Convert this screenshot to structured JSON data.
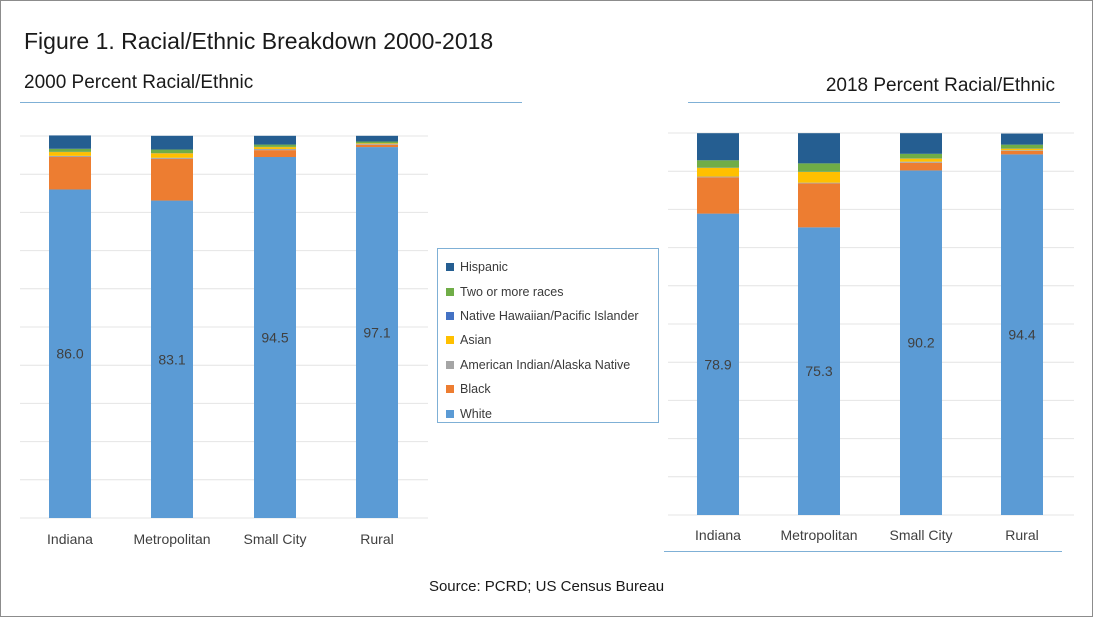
{
  "figure_title": "Figure 1. Racial/Ethnic Breakdown 2000-2018",
  "source": "Source: PCRD; US Census Bureau",
  "colors": {
    "White": "#5b9bd5",
    "Black": "#ed7d31",
    "American Indian/Alaska Native": "#a5a5a5",
    "Asian": "#ffc000",
    "Native Hawaiian/Pacific Islander": "#4472c4",
    "Two or more races": "#70ad47",
    "Hispanic": "#255e91"
  },
  "legend": {
    "items": [
      {
        "label": "Hispanic",
        "color": "#255e91"
      },
      {
        "label": "Two or more races",
        "color": "#70ad47"
      },
      {
        "label": "Native Hawaiian/Pacific Islander",
        "color": "#4472c4"
      },
      {
        "label": "Asian",
        "color": "#ffc000"
      },
      {
        "label": "American Indian/Alaska Native",
        "color": "#a5a5a5"
      },
      {
        "label": "Black",
        "color": "#ed7d31"
      },
      {
        "label": "White",
        "color": "#5b9bd5"
      }
    ]
  },
  "chart_data": [
    {
      "type": "bar",
      "stacked": true,
      "title": "2000 Percent Racial/Ethnic",
      "categories": [
        "Indiana",
        "Metropolitan",
        "Small City",
        "Rural"
      ],
      "ylim": [
        0,
        100
      ],
      "grid": true,
      "legend_position": "right",
      "series": [
        {
          "name": "White",
          "values": [
            86.0,
            83.1,
            94.5,
            97.1
          ],
          "data_labels": [
            "86.0",
            "83.1",
            "94.5",
            "97.1"
          ]
        },
        {
          "name": "Black",
          "values": [
            8.5,
            10.9,
            1.8,
            0.6
          ]
        },
        {
          "name": "American Indian/Alaska Native",
          "values": [
            0.3,
            0.3,
            0.3,
            0.2
          ]
        },
        {
          "name": "Asian",
          "values": [
            1.0,
            1.2,
            0.5,
            0.2
          ]
        },
        {
          "name": "Native Hawaiian/Pacific Islander",
          "values": [
            0.05,
            0.05,
            0.05,
            0.05
          ]
        },
        {
          "name": "Two or more races",
          "values": [
            0.8,
            0.9,
            0.6,
            0.4
          ]
        },
        {
          "name": "Hispanic",
          "values": [
            3.5,
            3.6,
            2.3,
            1.5
          ]
        }
      ]
    },
    {
      "type": "bar",
      "stacked": true,
      "title": "2018 Percent Racial/Ethnic",
      "categories": [
        "Indiana",
        "Metropolitan",
        "Small City",
        "Rural"
      ],
      "ylim": [
        0,
        100
      ],
      "grid": true,
      "series": [
        {
          "name": "White",
          "values": [
            78.9,
            75.3,
            90.2,
            94.4
          ],
          "data_labels": [
            "78.9",
            "75.3",
            "90.2",
            "94.4"
          ]
        },
        {
          "name": "Black",
          "values": [
            9.5,
            11.5,
            2.0,
            0.9
          ]
        },
        {
          "name": "American Indian/Alaska Native",
          "values": [
            0.2,
            0.2,
            0.3,
            0.2
          ]
        },
        {
          "name": "Asian",
          "values": [
            2.3,
            2.8,
            0.8,
            0.4
          ]
        },
        {
          "name": "Native Hawaiian/Pacific Islander",
          "values": [
            0.05,
            0.05,
            0.05,
            0.05
          ]
        },
        {
          "name": "Two or more races",
          "values": [
            1.9,
            2.2,
            1.2,
            1.0
          ]
        },
        {
          "name": "Hispanic",
          "values": [
            7.1,
            7.9,
            5.4,
            2.9
          ]
        }
      ]
    }
  ]
}
